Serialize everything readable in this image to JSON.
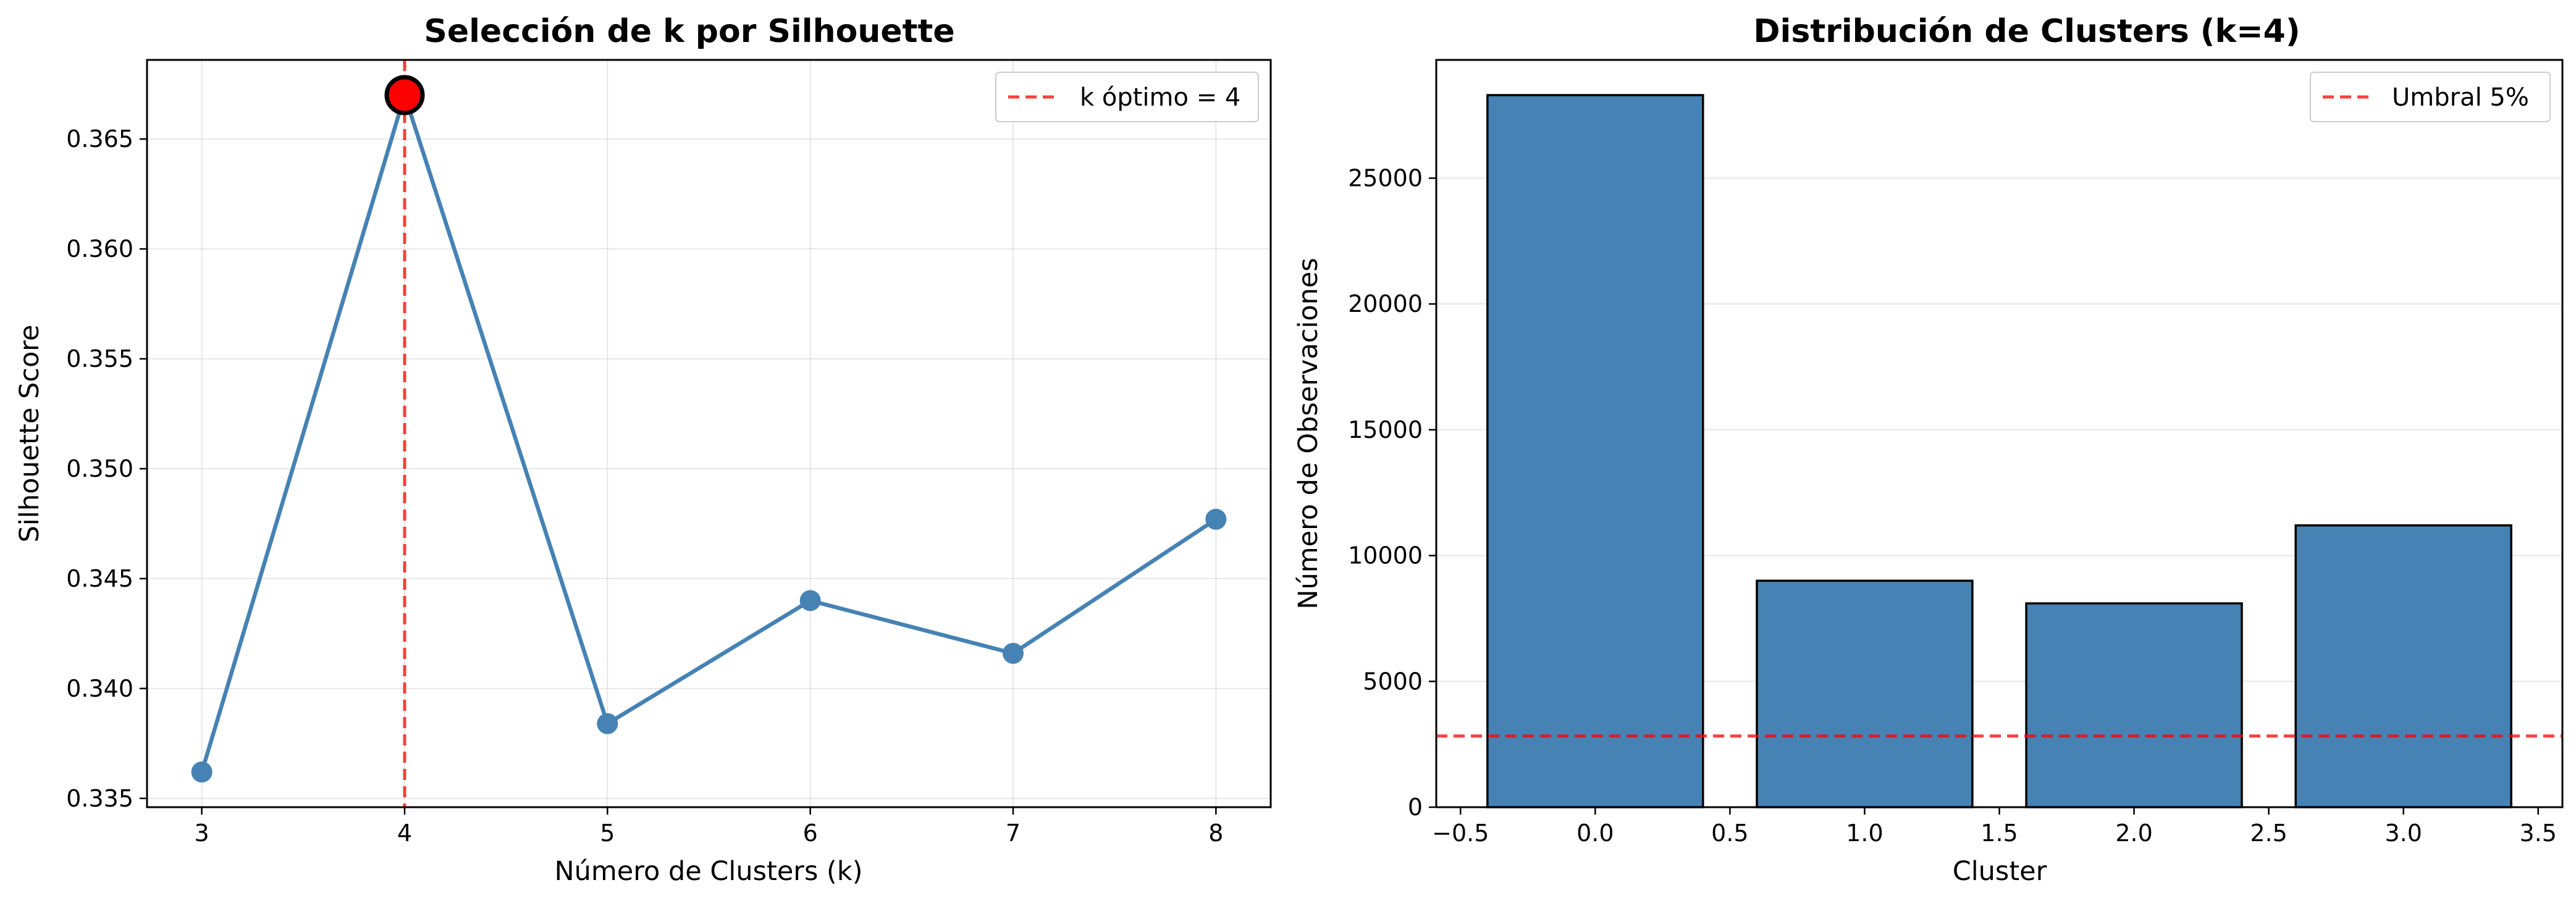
{
  "chart_data": [
    {
      "type": "line",
      "title": "Selección de k por Silhouette",
      "xlabel": "Número de Clusters (k)",
      "ylabel": "Silhouette Score",
      "x": [
        3,
        4,
        5,
        6,
        7,
        8
      ],
      "y": [
        0.3362,
        0.367,
        0.3384,
        0.344,
        0.3416,
        0.3477
      ],
      "xlim": [
        2.73,
        8.27
      ],
      "ylim": [
        0.3346,
        0.3686
      ],
      "xticks": [
        "3",
        "4",
        "5",
        "6",
        "7",
        "8"
      ],
      "yticks": [
        "0.335",
        "0.340",
        "0.345",
        "0.350",
        "0.355",
        "0.360",
        "0.365"
      ],
      "highlight_point": {
        "x": 4,
        "y": 0.367
      },
      "vline": {
        "x": 4,
        "label": "k óptimo = 4",
        "color": "#ff0000"
      },
      "line_color": "#4682b4",
      "grid": true,
      "legend_position": "top-right"
    },
    {
      "type": "bar",
      "title": "Distribución de Clusters (k=4)",
      "xlabel": "Cluster",
      "ylabel": "Número de Observaciones",
      "categories": [
        0,
        1,
        2,
        3
      ],
      "values": [
        28300,
        9000,
        8100,
        11200
      ],
      "xlim": [
        -0.59,
        3.59
      ],
      "ylim": [
        0,
        29700
      ],
      "xticks": [
        "−0.5",
        "0.0",
        "0.5",
        "1.0",
        "1.5",
        "2.0",
        "2.5",
        "3.0",
        "3.5"
      ],
      "yticks": [
        "0",
        "5000",
        "10000",
        "15000",
        "20000",
        "25000"
      ],
      "hline": {
        "y": 2830,
        "label": "Umbral 5%",
        "color": "#ff0000"
      },
      "bar_color": "#4682b4",
      "grid": true,
      "legend_position": "top-right"
    }
  ]
}
